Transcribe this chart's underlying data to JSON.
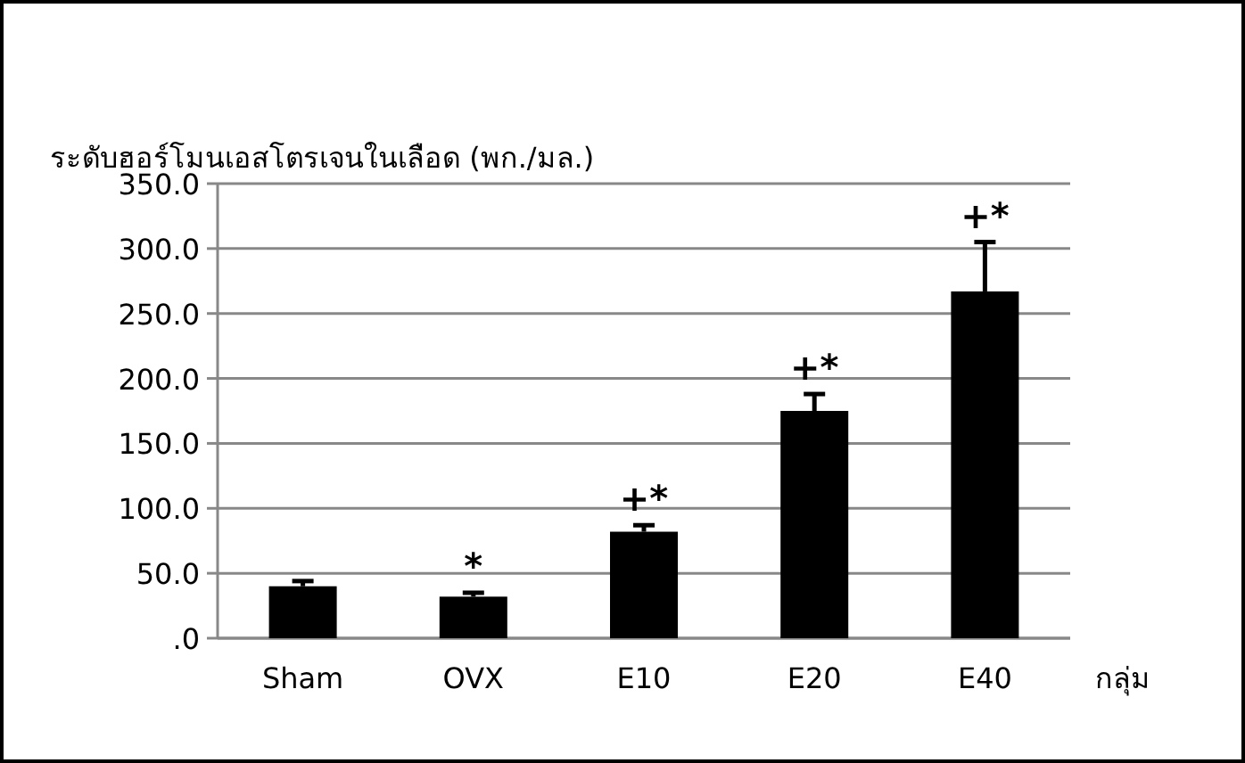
{
  "chart_data": {
    "type": "bar",
    "ylabel": "ระดับฮอร์โมนเอสโตรเจนในเลือด (พก./มล.)",
    "xlabel": "กลุ่ม",
    "categories": [
      "Sham",
      "OVX",
      "E10",
      "E20",
      "E40"
    ],
    "values": [
      40,
      32,
      82,
      175,
      267
    ],
    "errors": [
      4,
      3,
      5,
      13,
      38
    ],
    "color": "#000000",
    "ylim": [
      0,
      350
    ],
    "yticks": [
      {
        "value": 0,
        "label": ".0"
      },
      {
        "value": 50,
        "label": "50.0"
      },
      {
        "value": 100,
        "label": "100.0"
      },
      {
        "value": 150,
        "label": "150.0"
      },
      {
        "value": 200,
        "label": "200.0"
      },
      {
        "value": 250,
        "label": "250.0"
      },
      {
        "value": 300,
        "label": "300.0"
      },
      {
        "value": 350,
        "label": "350.0"
      }
    ],
    "grid": "y",
    "annotations": [
      "*",
      "+*",
      "+*",
      "+*"
    ]
  }
}
